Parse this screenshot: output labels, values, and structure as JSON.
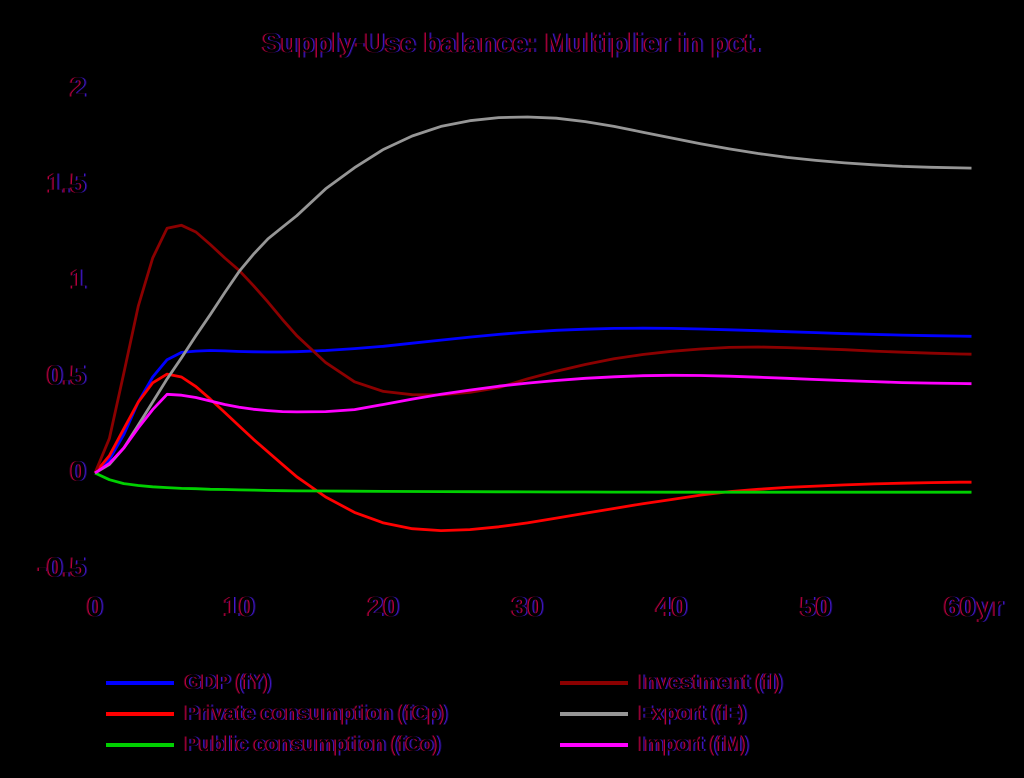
{
  "title": "Supply-Use balance: Multiplier in pct.",
  "background_color": "#000000",
  "chart_data": {
    "type": "line",
    "title": "Supply-Use balance: Multiplier in pct.",
    "xlabel": "",
    "ylabel": "",
    "x_unit": "yr",
    "xlim": [
      0,
      60.8
    ],
    "ylim": [
      -0.5,
      2
    ],
    "x_ticks": [
      0,
      10,
      20,
      30,
      40,
      50,
      60
    ],
    "y_ticks": [
      2,
      1.5,
      1,
      0.5,
      0,
      -0.5
    ],
    "grid": false,
    "axes_visible": false,
    "legend_position": "bottom",
    "x": [
      0,
      1,
      2,
      3,
      4,
      5,
      6,
      7,
      8,
      9,
      10,
      11,
      12,
      13,
      14,
      16,
      18,
      20,
      22,
      24,
      26,
      28,
      30,
      32,
      34,
      36,
      38,
      40,
      42,
      44,
      46,
      48,
      50,
      52,
      54,
      56,
      58,
      60,
      60.8
    ],
    "series": [
      {
        "name": "GDP (fY)",
        "color": "#0000ff",
        "values": [
          0,
          0.07,
          0.2,
          0.37,
          0.5,
          0.59,
          0.628,
          0.635,
          0.638,
          0.636,
          0.633,
          0.631,
          0.63,
          0.63,
          0.632,
          0.638,
          0.648,
          0.66,
          0.676,
          0.692,
          0.708,
          0.722,
          0.734,
          0.743,
          0.749,
          0.753,
          0.754,
          0.753,
          0.75,
          0.746,
          0.741,
          0.736,
          0.731,
          0.726,
          0.722,
          0.718,
          0.715,
          0.713,
          0.712
        ]
      },
      {
        "name": "Private consumption (fCp)",
        "color": "#ff0000",
        "values": [
          0,
          0.09,
          0.23,
          0.37,
          0.47,
          0.515,
          0.5,
          0.45,
          0.385,
          0.315,
          0.245,
          0.175,
          0.11,
          0.045,
          -0.02,
          -0.125,
          -0.205,
          -0.26,
          -0.29,
          -0.3,
          -0.295,
          -0.28,
          -0.26,
          -0.235,
          -0.21,
          -0.185,
          -0.16,
          -0.138,
          -0.115,
          -0.097,
          -0.085,
          -0.075,
          -0.068,
          -0.062,
          -0.057,
          -0.053,
          -0.05,
          -0.048,
          -0.048
        ]
      },
      {
        "name": "Public consumption (fCo)",
        "color": "#00d000",
        "values": [
          0,
          -0.035,
          -0.055,
          -0.065,
          -0.072,
          -0.076,
          -0.08,
          -0.082,
          -0.085,
          -0.086,
          -0.088,
          -0.089,
          -0.091,
          -0.092,
          -0.093,
          -0.094,
          -0.095,
          -0.096,
          -0.0965,
          -0.097,
          -0.0975,
          -0.098,
          -0.0985,
          -0.099,
          -0.099,
          -0.0995,
          -0.0995,
          -0.1,
          -0.1,
          -0.1,
          -0.1,
          -0.1,
          -0.1,
          -0.1,
          -0.1,
          -0.1,
          -0.1,
          -0.1,
          -0.1
        ]
      },
      {
        "name": "Investment (fI)",
        "color": "#8b0000",
        "values": [
          0,
          0.18,
          0.52,
          0.87,
          1.12,
          1.275,
          1.29,
          1.255,
          1.19,
          1.12,
          1.055,
          0.975,
          0.89,
          0.8,
          0.715,
          0.575,
          0.475,
          0.425,
          0.408,
          0.407,
          0.42,
          0.445,
          0.49,
          0.53,
          0.565,
          0.595,
          0.617,
          0.634,
          0.646,
          0.654,
          0.656,
          0.653,
          0.648,
          0.642,
          0.635,
          0.629,
          0.624,
          0.62,
          0.619
        ]
      },
      {
        "name": "Export (fE)",
        "color": "#969696",
        "values": [
          0,
          0.045,
          0.13,
          0.25,
          0.37,
          0.49,
          0.6,
          0.715,
          0.825,
          0.94,
          1.05,
          1.14,
          1.22,
          1.28,
          1.34,
          1.48,
          1.59,
          1.685,
          1.755,
          1.805,
          1.835,
          1.851,
          1.854,
          1.848,
          1.83,
          1.805,
          1.775,
          1.745,
          1.715,
          1.688,
          1.664,
          1.644,
          1.628,
          1.615,
          1.605,
          1.597,
          1.592,
          1.589,
          1.588
        ]
      },
      {
        "name": "Import (fM)",
        "color": "#ff00ff",
        "values": [
          0,
          0.05,
          0.13,
          0.235,
          0.33,
          0.41,
          0.405,
          0.393,
          0.375,
          0.357,
          0.342,
          0.332,
          0.325,
          0.32,
          0.318,
          0.32,
          0.33,
          0.357,
          0.385,
          0.41,
          0.432,
          0.452,
          0.468,
          0.482,
          0.493,
          0.501,
          0.507,
          0.509,
          0.508,
          0.504,
          0.499,
          0.493,
          0.487,
          0.481,
          0.476,
          0.471,
          0.468,
          0.466,
          0.465
        ]
      }
    ],
    "legend_columns": [
      [
        0,
        1,
        2
      ],
      [
        3,
        4,
        5
      ]
    ]
  }
}
